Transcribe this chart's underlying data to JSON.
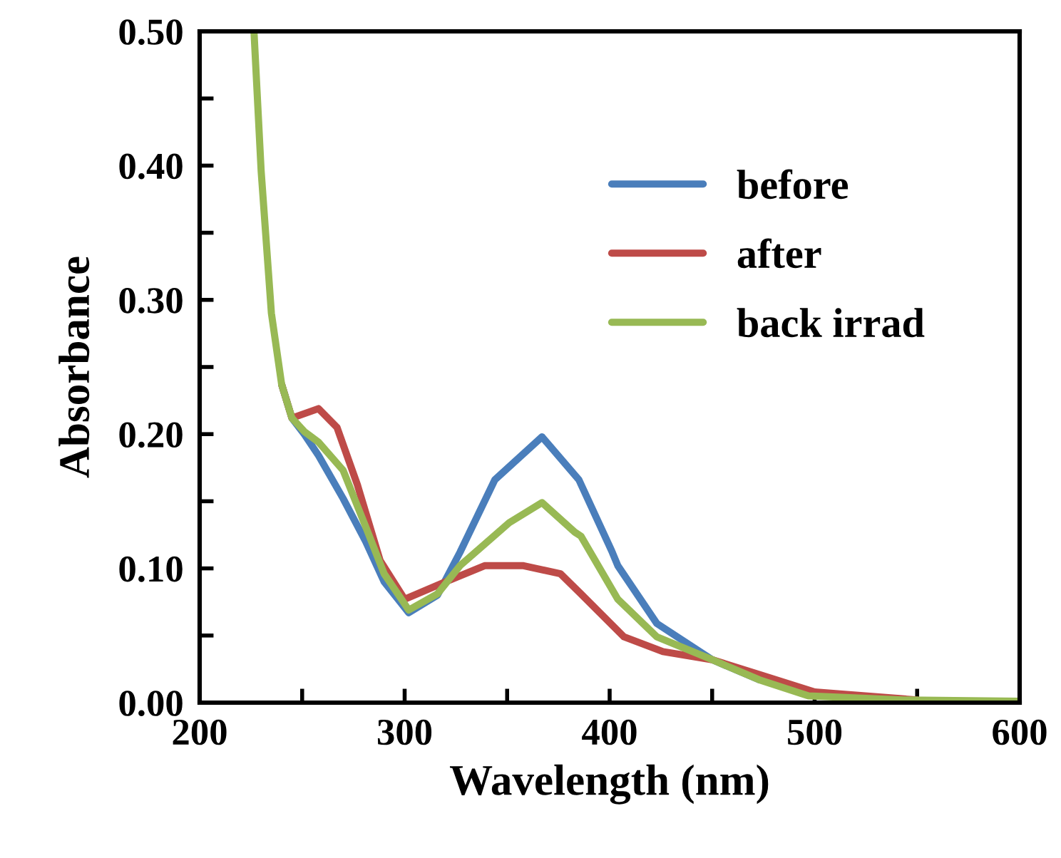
{
  "chart_data": {
    "type": "line",
    "xlabel": "Wavelength (nm)",
    "ylabel": "Absorbance",
    "xlim": [
      200,
      600
    ],
    "ylim": [
      0,
      0.5
    ],
    "xticks": [
      200,
      {
        "value": 250,
        "label": null
      },
      300,
      {
        "value": 350,
        "label": null
      },
      400,
      {
        "value": 450,
        "label": null
      },
      500,
      {
        "value": 550,
        "label": null
      },
      600
    ],
    "yticks": [
      {
        "value": 0,
        "label": "0.00"
      },
      {
        "value": 0.05,
        "label": null
      },
      {
        "value": 0.1,
        "label": "0.10"
      },
      {
        "value": 0.15,
        "label": null
      },
      {
        "value": 0.2,
        "label": "0.20"
      },
      {
        "value": 0.25,
        "label": null
      },
      {
        "value": 0.3,
        "label": "0.30"
      },
      {
        "value": 0.35,
        "label": null
      },
      {
        "value": 0.4,
        "label": "0.40"
      },
      {
        "value": 0.45,
        "label": null
      },
      {
        "value": 0.5,
        "label": "0.50"
      }
    ],
    "grid": false,
    "legend": "top right",
    "marker": "none",
    "line_style": "solid",
    "series": [
      {
        "name": "before",
        "color": "#4a7ebb",
        "x": [
          240,
          245,
          251,
          258,
          270,
          281,
          290,
          302,
          316,
          327,
          344,
          367,
          385,
          401,
          404,
          423,
          450,
          473
        ],
        "values": [
          0.237,
          0.212,
          0.2,
          0.184,
          0.152,
          0.12,
          0.09,
          0.067,
          0.08,
          0.112,
          0.166,
          0.198,
          0.166,
          0.113,
          0.102,
          0.059,
          0.032,
          0.017
        ]
      },
      {
        "name": "after",
        "color": "#be4b48",
        "x": [
          240,
          245,
          258,
          267,
          277,
          288,
          300,
          320,
          339,
          358,
          376,
          386,
          407,
          426,
          450,
          473,
          500,
          550
        ],
        "values": [
          0.237,
          0.212,
          0.219,
          0.205,
          0.162,
          0.106,
          0.077,
          0.09,
          0.102,
          0.102,
          0.096,
          0.081,
          0.049,
          0.038,
          0.032,
          0.021,
          0.008,
          0.002
        ]
      },
      {
        "name": "back irrad",
        "color": "#98b954",
        "x": [
          226.5,
          230,
          235,
          240,
          245,
          251,
          258,
          270,
          281,
          290,
          302,
          316,
          327,
          351,
          367,
          383,
          386,
          404,
          423,
          450,
          473,
          497,
          543,
          600
        ],
        "values": [
          0.5,
          0.396,
          0.29,
          0.237,
          0.212,
          0.202,
          0.194,
          0.173,
          0.131,
          0.096,
          0.069,
          0.081,
          0.102,
          0.134,
          0.149,
          0.127,
          0.124,
          0.077,
          0.049,
          0.032,
          0.017,
          0.005,
          0.002,
          0.001
        ]
      }
    ]
  }
}
